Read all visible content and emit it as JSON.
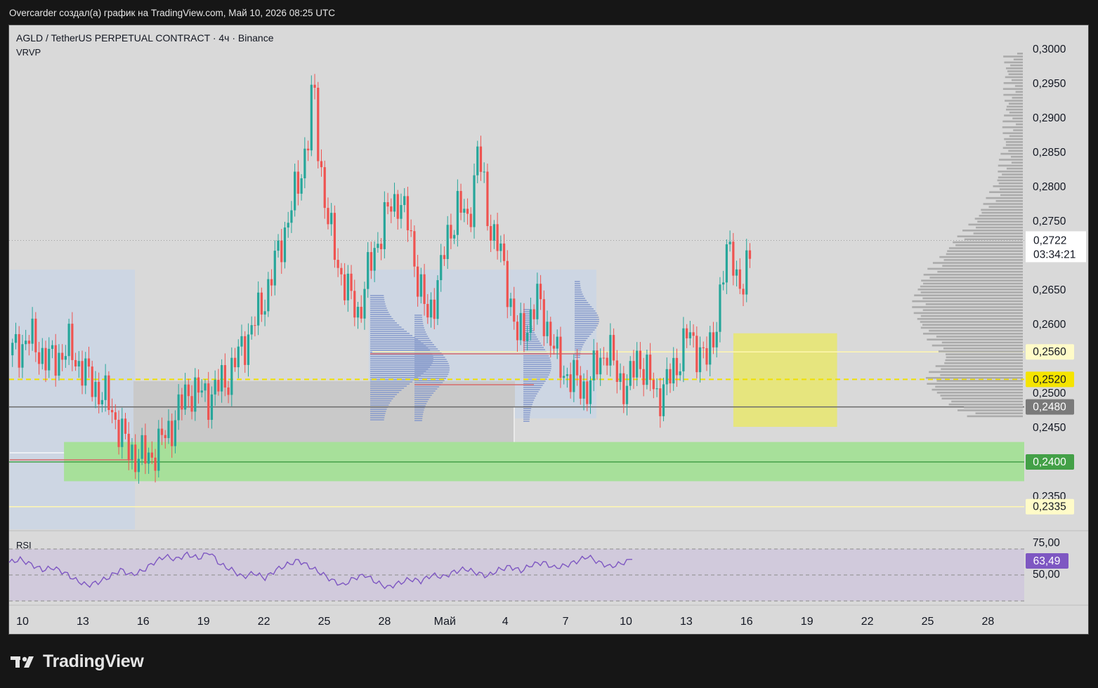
{
  "caption": "Overcarder создал(а) график на TradingView.com, Май 10, 2026 08:25 UTC",
  "symbol_title": "AGLD / TetherUS PERPETUAL CONTRACT · 4ч · Binance",
  "indicator_vrvp": "VRVP",
  "indicator_rsi": "RSI",
  "brand": "TradingView",
  "colors": {
    "background": "#d9d9d9",
    "up": "#26a69a",
    "down": "#ef5350",
    "rsi_line": "#7e57c2",
    "rsi_badge": "#7e57c2",
    "yellow_zone": "#e6e57e",
    "green_zone": "#a7e09a",
    "green_badge": "#43a047",
    "price_dashed": "#f0e000",
    "volume_profile": "#a9a9a9"
  },
  "chart_data": [
    {
      "type": "candlestick",
      "title": "AGLD / TetherUS PERPETUAL CONTRACT · 4ч · Binance",
      "x_ticks": [
        "10",
        "13",
        "16",
        "19",
        "22",
        "25",
        "28",
        "Май",
        "4",
        "7",
        "10",
        "13",
        "16",
        "19",
        "22",
        "25",
        "28"
      ],
      "y_ticks": [
        "0,3000",
        "0,2950",
        "0,2900",
        "0,2850",
        "0,2800",
        "0,2750",
        "0,2650",
        "0,2600",
        "0,2500",
        "0,2450",
        "0,2350"
      ],
      "ylim": [
        0.2285,
        0.3035
      ],
      "last_price": 0.2722,
      "last_price_label": "0,2722",
      "countdown": "03:34:21",
      "candle_points": [
        {
          "x": 0,
          "c": 0.2555
        },
        {
          "x": 2,
          "c": 0.258
        },
        {
          "x": 4,
          "c": 0.2545
        },
        {
          "x": 6,
          "c": 0.2565
        },
        {
          "x": 8,
          "c": 0.252
        },
        {
          "x": 10,
          "c": 0.2485
        },
        {
          "x": 12,
          "c": 0.2415
        },
        {
          "x": 14,
          "c": 0.2405
        },
        {
          "x": 16,
          "c": 0.2445
        },
        {
          "x": 18,
          "c": 0.2505
        },
        {
          "x": 20,
          "c": 0.2495
        },
        {
          "x": 22,
          "c": 0.2525
        },
        {
          "x": 25,
          "c": 0.2615
        },
        {
          "x": 26,
          "c": 0.2655
        },
        {
          "x": 27,
          "c": 0.2705
        },
        {
          "x": 28,
          "c": 0.2755
        },
        {
          "x": 29,
          "c": 0.2805
        },
        {
          "x": 30,
          "c": 0.2875
        },
        {
          "x": 30.5,
          "c": 0.2955
        },
        {
          "x": 31,
          "c": 0.2855
        },
        {
          "x": 32,
          "c": 0.2745
        },
        {
          "x": 33,
          "c": 0.2685
        },
        {
          "x": 34,
          "c": 0.2645
        },
        {
          "x": 35,
          "c": 0.2615
        },
        {
          "x": 36,
          "c": 0.2675
        },
        {
          "x": 37,
          "c": 0.2725
        },
        {
          "x": 38,
          "c": 0.2765
        },
        {
          "x": 39,
          "c": 0.2785
        },
        {
          "x": 40,
          "c": 0.2745
        },
        {
          "x": 41,
          "c": 0.2665
        },
        {
          "x": 42,
          "c": 0.2605
        },
        {
          "x": 43,
          "c": 0.2665
        },
        {
          "x": 44,
          "c": 0.2725
        },
        {
          "x": 45,
          "c": 0.2775
        },
        {
          "x": 46,
          "c": 0.2745
        },
        {
          "x": 47,
          "c": 0.2855
        },
        {
          "x": 48,
          "c": 0.2755
        },
        {
          "x": 49,
          "c": 0.2715
        },
        {
          "x": 50,
          "c": 0.2655
        },
        {
          "x": 51,
          "c": 0.2575
        },
        {
          "x": 52,
          "c": 0.2605
        },
        {
          "x": 53,
          "c": 0.2635
        },
        {
          "x": 54,
          "c": 0.2595
        },
        {
          "x": 55,
          "c": 0.2545
        },
        {
          "x": 56,
          "c": 0.2525
        },
        {
          "x": 57,
          "c": 0.2515
        },
        {
          "x": 58,
          "c": 0.2505
        },
        {
          "x": 59,
          "c": 0.2545
        },
        {
          "x": 60,
          "c": 0.2565
        },
        {
          "x": 61,
          "c": 0.2525
        },
        {
          "x": 62,
          "c": 0.2505
        },
        {
          "x": 63,
          "c": 0.2555
        },
        {
          "x": 64,
          "c": 0.2525
        },
        {
          "x": 65,
          "c": 0.2495
        },
        {
          "x": 66,
          "c": 0.2515
        },
        {
          "x": 67,
          "c": 0.2545
        },
        {
          "x": 68,
          "c": 0.2585
        },
        {
          "x": 69,
          "c": 0.2565
        },
        {
          "x": 70,
          "c": 0.2545
        },
        {
          "x": 71,
          "c": 0.2615
        },
        {
          "x": 72,
          "c": 0.2705
        },
        {
          "x": 72.5,
          "c": 0.2715
        },
        {
          "x": 73,
          "c": 0.2665
        },
        {
          "x": 73.5,
          "c": 0.2635
        },
        {
          "x": 74,
          "c": 0.2685
        },
        {
          "x": 74.3,
          "c": 0.2722
        }
      ],
      "price_labels": [
        {
          "value": 0.256,
          "label": "0,2560",
          "style": "light-yellow"
        },
        {
          "value": 0.252,
          "label": "0,2520",
          "style": "yellow"
        },
        {
          "value": 0.248,
          "label": "0,2480",
          "style": "gray"
        },
        {
          "value": 0.24,
          "label": "0,2400",
          "style": "green"
        },
        {
          "value": 0.2335,
          "label": "0,2335",
          "style": "light-yellow"
        }
      ],
      "zones": [
        {
          "name": "yellow-zone",
          "x_from": 72.6,
          "x_to": 83,
          "y_from": 0.2451,
          "y_to": 0.2587
        },
        {
          "name": "green-zone",
          "x_from": 5.5,
          "x_to": 104,
          "y_from": 0.2372,
          "y_to": 0.2429
        }
      ]
    },
    {
      "type": "line",
      "title": "RSI",
      "y_ticks": [
        "75,00",
        "50,00"
      ],
      "ylim": [
        30,
        80
      ],
      "last_value": 63.49,
      "last_value_label": "63,49",
      "values": [
        62,
        65,
        60,
        55,
        57,
        52,
        45,
        40,
        43,
        48,
        55,
        50,
        54,
        62,
        68,
        65,
        70,
        66,
        72,
        60,
        55,
        48,
        52,
        47,
        55,
        60,
        64,
        58,
        52,
        45,
        40,
        47,
        50,
        43,
        38,
        42,
        46,
        44,
        50,
        48,
        53,
        56,
        52,
        49,
        55,
        58,
        54,
        60,
        62,
        57,
        59,
        63,
        68,
        62,
        58,
        61,
        65
      ]
    }
  ]
}
